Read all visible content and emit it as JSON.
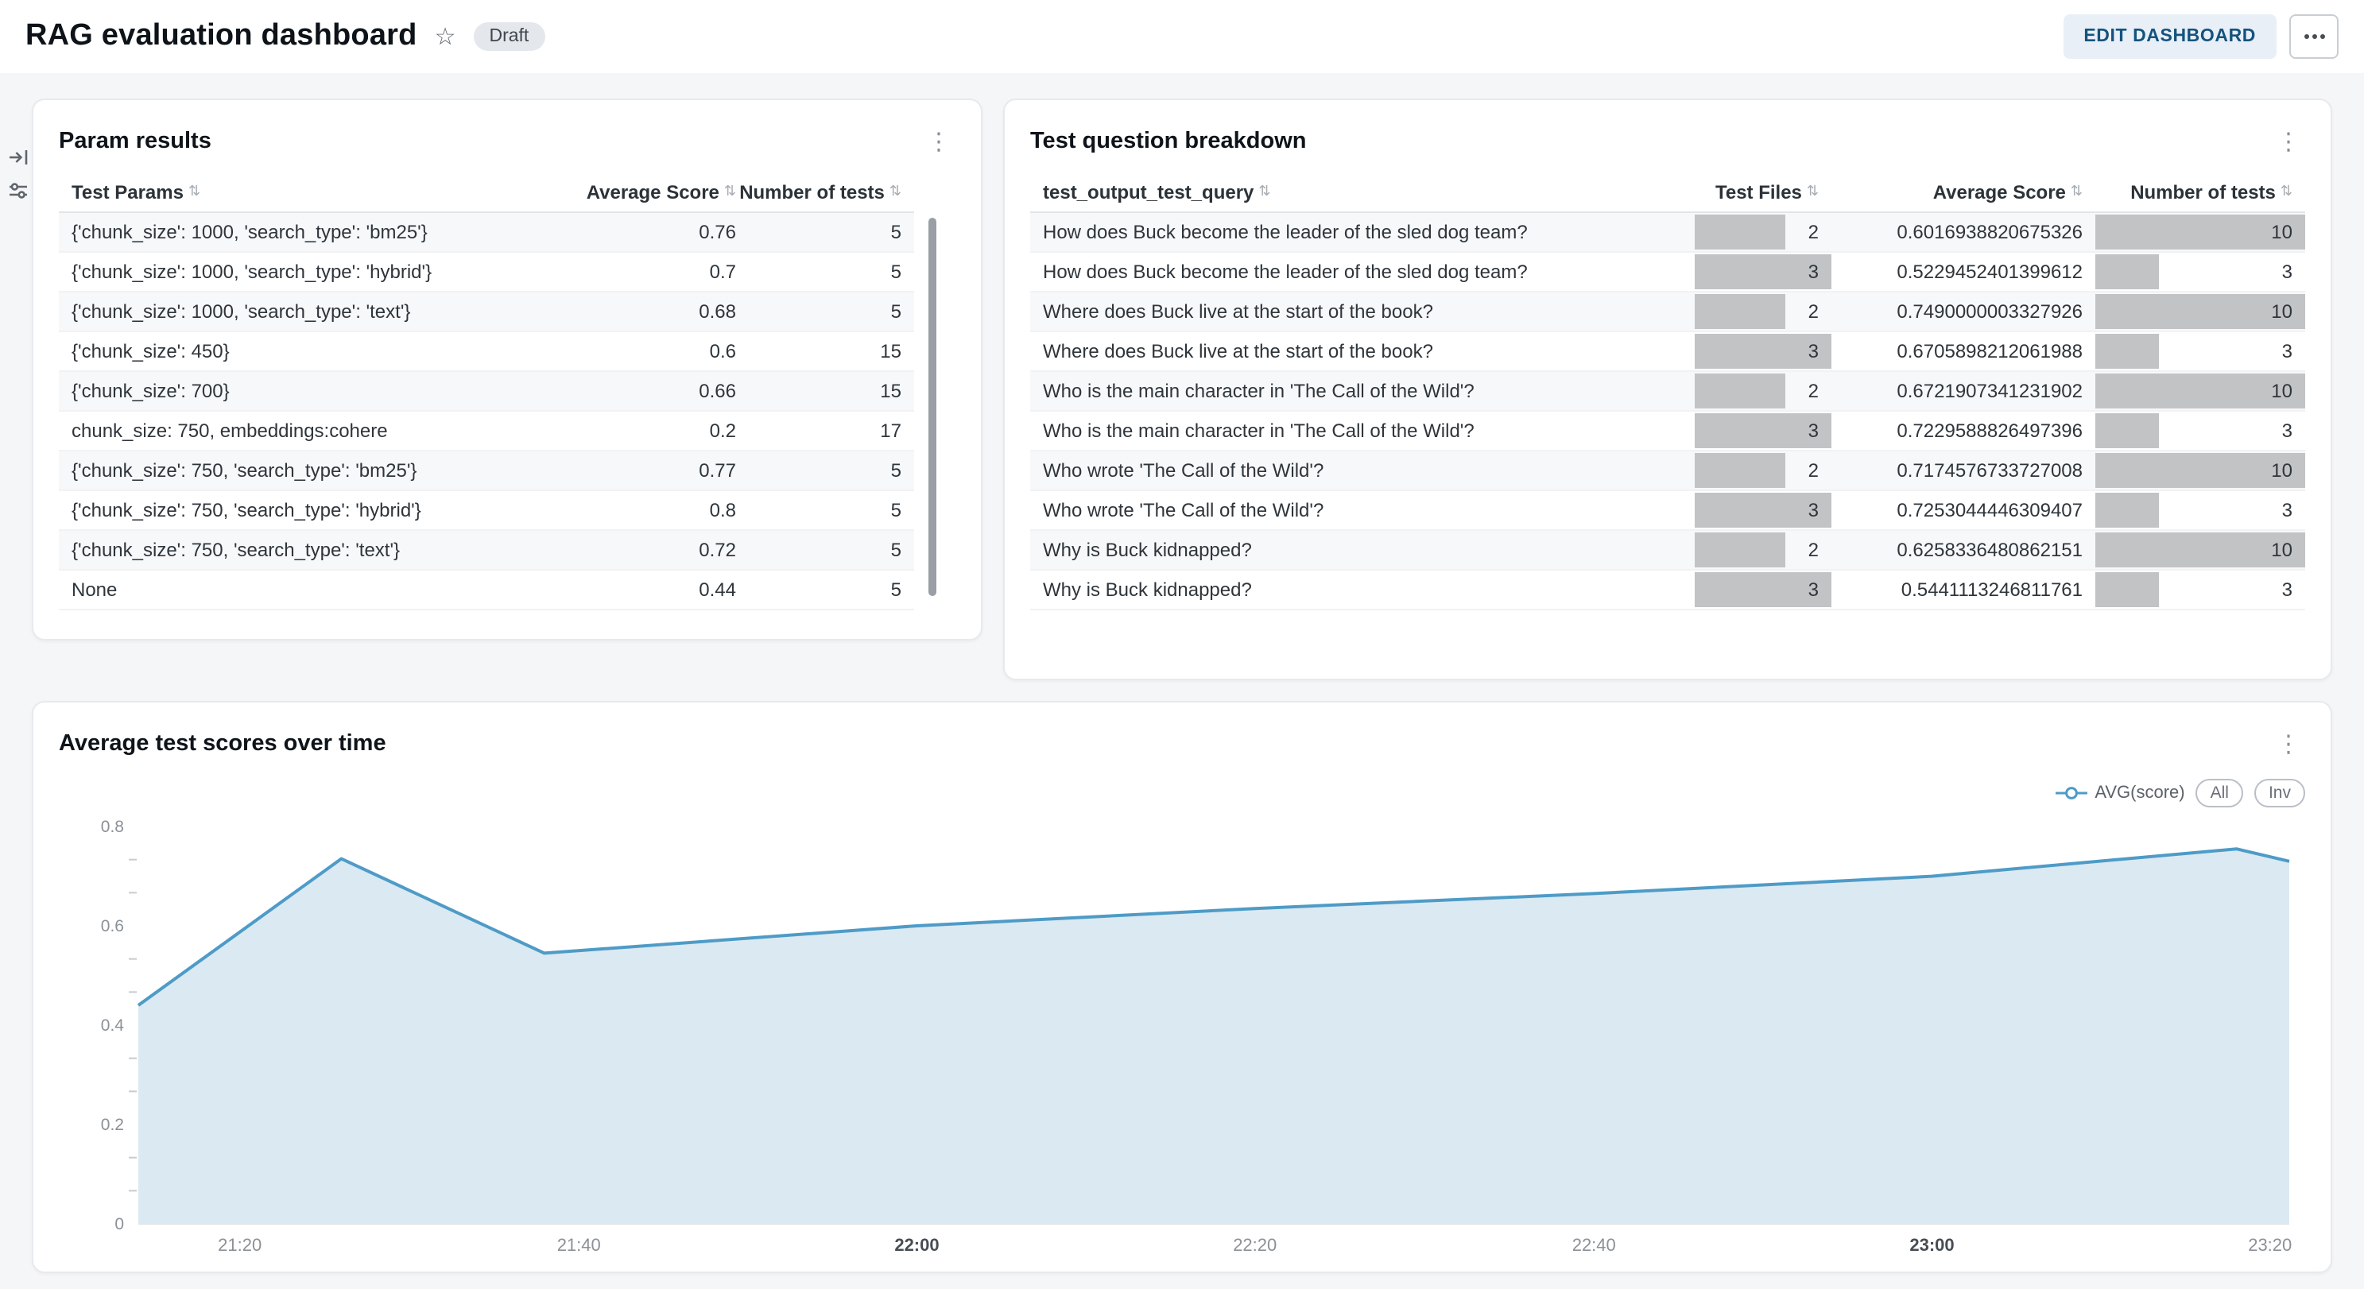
{
  "header": {
    "title": "RAG evaluation dashboard",
    "status_badge": "Draft",
    "edit_button": "EDIT DASHBOARD"
  },
  "icons": {
    "star": "☆",
    "kebab": "⋮",
    "sort": "⇅"
  },
  "param_results": {
    "title": "Param results",
    "columns": [
      "Test Params",
      "Average Score",
      "Number of tests"
    ],
    "rows": [
      {
        "params": "{'chunk_size': 1000, 'search_type': 'bm25'}",
        "avg": "0.76",
        "n": "5"
      },
      {
        "params": "{'chunk_size': 1000, 'search_type': 'hybrid'}",
        "avg": "0.7",
        "n": "5"
      },
      {
        "params": "{'chunk_size': 1000, 'search_type': 'text'}",
        "avg": "0.68",
        "n": "5"
      },
      {
        "params": "{'chunk_size': 450}",
        "avg": "0.6",
        "n": "15"
      },
      {
        "params": "{'chunk_size': 700}",
        "avg": "0.66",
        "n": "15"
      },
      {
        "params": "chunk_size: 750, embeddings:cohere",
        "avg": "0.2",
        "n": "17"
      },
      {
        "params": "{'chunk_size': 750, 'search_type': 'bm25'}",
        "avg": "0.77",
        "n": "5"
      },
      {
        "params": "{'chunk_size': 750, 'search_type': 'hybrid'}",
        "avg": "0.8",
        "n": "5"
      },
      {
        "params": "{'chunk_size': 750, 'search_type': 'text'}",
        "avg": "0.72",
        "n": "5"
      },
      {
        "params": "None",
        "avg": "0.44",
        "n": "5"
      }
    ]
  },
  "question_breakdown": {
    "title": "Test question breakdown",
    "columns": [
      "test_output_test_query",
      "Test Files",
      "Average Score",
      "Number of tests"
    ],
    "files_max": 3,
    "n_max": 10,
    "rows": [
      {
        "query": "How does Buck become the leader of the sled dog team?",
        "files": 2,
        "avg": "0.6016938820675326",
        "n": 10
      },
      {
        "query": "How does Buck become the leader of the sled dog team?",
        "files": 3,
        "avg": "0.5229452401399612",
        "n": 3
      },
      {
        "query": "Where does Buck live at the start of the book?",
        "files": 2,
        "avg": "0.7490000003327926",
        "n": 10
      },
      {
        "query": "Where does Buck live at the start of the book?",
        "files": 3,
        "avg": "0.6705898212061988",
        "n": 3
      },
      {
        "query": "Who is the main character in 'The Call of the Wild'?",
        "files": 2,
        "avg": "0.6721907341231902",
        "n": 10
      },
      {
        "query": "Who is the main character in 'The Call of the Wild'?",
        "files": 3,
        "avg": "0.7229588826497396",
        "n": 3
      },
      {
        "query": "Who wrote 'The Call of the Wild'?",
        "files": 2,
        "avg": "0.7174576733727008",
        "n": 10
      },
      {
        "query": "Who wrote 'The Call of the Wild'?",
        "files": 3,
        "avg": "0.7253044446309407",
        "n": 3
      },
      {
        "query": "Why is Buck kidnapped?",
        "files": 2,
        "avg": "0.6258336480862151",
        "n": 10
      },
      {
        "query": "Why is Buck kidnapped?",
        "files": 3,
        "avg": "0.5441113246811761",
        "n": 3
      }
    ]
  },
  "chart_card": {
    "title": "Average test scores over time"
  },
  "chart_data": {
    "type": "area",
    "title": "Average test scores over time",
    "legend": {
      "series_label": "AVG(score)",
      "buttons": [
        "All",
        "Inv"
      ],
      "position": "top-right"
    },
    "grid": false,
    "line_color": "#4e9bc7",
    "fill_color": "#dbe9f2",
    "ylim": [
      0,
      0.8
    ],
    "y_ticks": [
      0,
      0.2,
      0.4,
      0.6,
      0.8
    ],
    "x_domain": [
      21.233,
      23.352
    ],
    "x_ticks": [
      {
        "t": 21.333,
        "label": "21:20",
        "bold": false
      },
      {
        "t": 21.667,
        "label": "21:40",
        "bold": false
      },
      {
        "t": 22.0,
        "label": "22:00",
        "bold": true
      },
      {
        "t": 22.333,
        "label": "22:20",
        "bold": false
      },
      {
        "t": 22.667,
        "label": "22:40",
        "bold": false
      },
      {
        "t": 23.0,
        "label": "23:00",
        "bold": true
      },
      {
        "t": 23.333,
        "label": "23:20",
        "bold": false
      }
    ],
    "series": [
      {
        "name": "AVG(score)",
        "points": [
          {
            "time": "21:14",
            "t": 21.233,
            "value": 0.44
          },
          {
            "time": "21:26",
            "t": 21.433,
            "value": 0.735
          },
          {
            "time": "21:38",
            "t": 21.633,
            "value": 0.545
          },
          {
            "time": "22:00",
            "t": 22.0,
            "value": 0.6
          },
          {
            "time": "22:20",
            "t": 22.333,
            "value": 0.635
          },
          {
            "time": "22:40",
            "t": 22.667,
            "value": 0.665
          },
          {
            "time": "23:00",
            "t": 23.0,
            "value": 0.7
          },
          {
            "time": "23:18",
            "t": 23.3,
            "value": 0.755
          },
          {
            "time": "23:21",
            "t": 23.352,
            "value": 0.73
          }
        ]
      }
    ]
  }
}
